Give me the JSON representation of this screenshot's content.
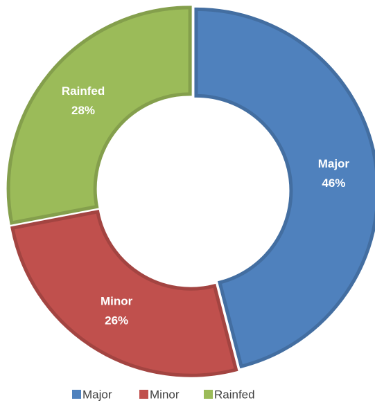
{
  "chart_data": {
    "type": "donut",
    "categories": [
      "Major",
      "Minor",
      "Rainfed"
    ],
    "values": [
      46,
      26,
      28
    ],
    "value_labels": [
      "46%",
      "26%",
      "28%"
    ],
    "series": [
      {
        "name": "Major",
        "color": "#4f81bd"
      },
      {
        "name": "Minor",
        "color": "#c0504d"
      },
      {
        "name": "Rainfed",
        "color": "#9bbb59"
      }
    ],
    "legend": "bottom"
  }
}
